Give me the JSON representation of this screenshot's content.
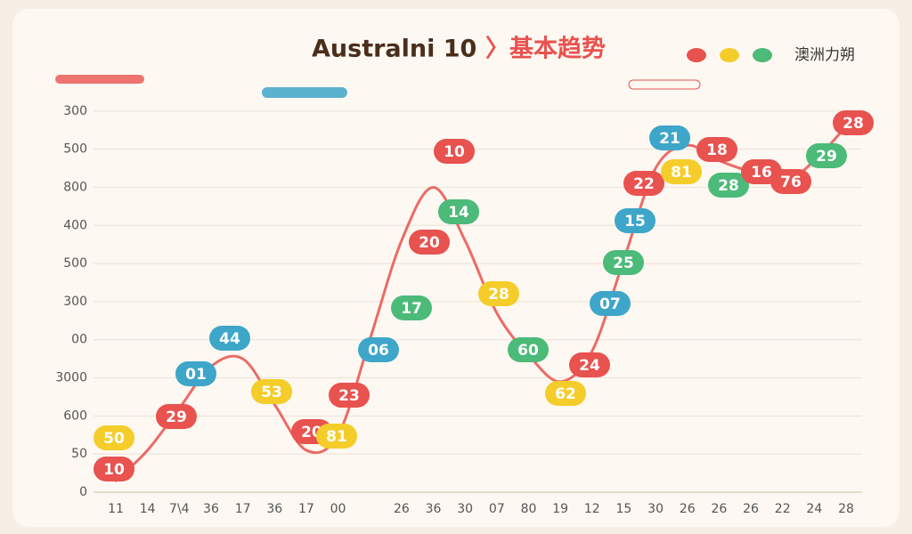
{
  "chart_data": {
    "type": "line",
    "title": "Australni 10",
    "title_suffix": "〉基本趋势",
    "legend_label": "澳洲力朔",
    "legend_colors": [
      "#e8524f",
      "#f5cd2a",
      "#4cba78"
    ],
    "categories": [
      "11",
      "14",
      "7\\4",
      "36",
      "17",
      "36",
      "17",
      "00",
      null,
      "26",
      "36",
      "30",
      "07",
      "80",
      "19",
      "12",
      "15",
      "30",
      "26",
      "26",
      "26",
      "22",
      "24",
      "28"
    ],
    "series": [
      {
        "color": "#e8524f",
        "values": [
          0.3,
          1.1,
          2.2,
          3.3,
          3.5,
          2.3,
          1.1,
          1.5,
          4.0,
          6.6,
          8.0,
          6.6,
          4.7,
          3.6,
          2.9,
          3.7,
          6.1,
          8.5,
          9.1,
          8.7,
          8.4,
          8.1,
          8.7,
          9.6
        ]
      }
    ],
    "ylim": [
      0,
      10.3
    ],
    "yticks": [
      0,
      {
        "value": 1,
        "label": "50"
      },
      {
        "value": 2,
        "label": "600"
      },
      {
        "value": 3,
        "label": "3000"
      },
      {
        "value": 4,
        "label": "00"
      },
      {
        "value": 5,
        "label": "300"
      },
      {
        "value": 6,
        "label": "500"
      },
      {
        "value": 7,
        "label": "400"
      },
      {
        "value": 8,
        "label": "800"
      },
      {
        "value": 9,
        "label": "500"
      },
      {
        "value": 10,
        "label": "300"
      }
    ],
    "grid": true,
    "annotations": [
      {
        "text": "50",
        "color": "#f5cd2a"
      },
      {
        "text": "10",
        "color": "#e8524f"
      },
      {
        "text": "29",
        "color": "#e8524f"
      },
      {
        "text": "01",
        "color": "#3ea6c9"
      },
      {
        "text": "44",
        "color": "#3ea6c9"
      },
      {
        "text": "53",
        "color": "#f5cd2a"
      },
      {
        "text": "20",
        "color": "#e8524f"
      },
      {
        "text": "81",
        "color": "#f5cd2a"
      },
      {
        "text": "23",
        "color": "#e8524f"
      },
      {
        "text": "06",
        "color": "#3ea6c9"
      },
      {
        "text": "17",
        "color": "#4cba78"
      },
      {
        "text": "10",
        "color": "#e8524f"
      },
      {
        "text": "14",
        "color": "#4cba78"
      },
      {
        "text": "20",
        "color": "#e8524f"
      },
      {
        "text": "28",
        "color": "#f5cd2a"
      },
      {
        "text": "60",
        "color": "#4cba78"
      },
      {
        "text": "62",
        "color": "#f5cd2a"
      },
      {
        "text": "24",
        "color": "#e8524f"
      },
      {
        "text": "07",
        "color": "#3ea6c9"
      },
      {
        "text": "25",
        "color": "#4cba78"
      },
      {
        "text": "15",
        "color": "#3ea6c9"
      },
      {
        "text": "22",
        "color": "#e8524f"
      },
      {
        "text": "21",
        "color": "#3ea6c9"
      },
      {
        "text": "81",
        "color": "#f5cd2a"
      },
      {
        "text": "18",
        "color": "#e8524f"
      },
      {
        "text": "28",
        "color": "#4cba78"
      },
      {
        "text": "16",
        "color": "#e8524f"
      },
      {
        "text": "76",
        "color": "#e8524f"
      },
      {
        "text": "29",
        "color": "#4cba78"
      },
      {
        "text": "28",
        "color": "#e8524f"
      }
    ]
  }
}
